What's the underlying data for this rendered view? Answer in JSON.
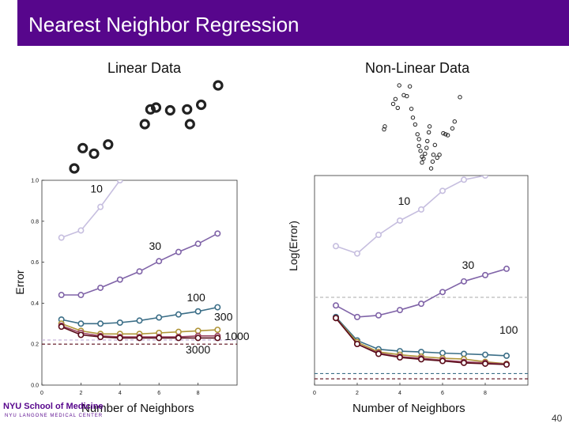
{
  "slide": {
    "title": "Nearest Neighbor Regression",
    "subtitle_left": "Linear Data",
    "subtitle_right": "Non-Linear Data",
    "page_number": "40",
    "logo_text": "NYU School of Medicine",
    "logo_subtext": "NYU LANGONE MEDICAL CENTER",
    "accent_color": "#57068c"
  },
  "chart_data": [
    {
      "type": "scatter",
      "name": "linear-data",
      "title": "Linear Data",
      "points": [
        [
          0.0,
          0.0
        ],
        [
          0.6,
          2.2
        ],
        [
          1.4,
          1.6
        ],
        [
          2.4,
          2.6
        ],
        [
          5.0,
          4.8
        ],
        [
          5.4,
          6.4
        ],
        [
          5.8,
          6.6
        ],
        [
          6.8,
          6.3
        ],
        [
          8.0,
          6.4
        ],
        [
          8.2,
          4.8
        ],
        [
          9.0,
          6.9
        ],
        [
          10.2,
          9.0
        ]
      ]
    },
    {
      "type": "scatter",
      "name": "nonlinear-data",
      "title": "Non-Linear Data",
      "points": [
        [
          0.0,
          4.2
        ],
        [
          0.1,
          4.5
        ],
        [
          1.2,
          6.8
        ],
        [
          1.5,
          7.3
        ],
        [
          1.8,
          6.4
        ],
        [
          2.0,
          8.7
        ],
        [
          2.6,
          7.7
        ],
        [
          3.0,
          7.6
        ],
        [
          3.4,
          8.6
        ],
        [
          3.6,
          6.3
        ],
        [
          3.8,
          5.4
        ],
        [
          4.1,
          4.7
        ],
        [
          4.4,
          3.7
        ],
        [
          4.6,
          3.2
        ],
        [
          4.6,
          2.5
        ],
        [
          4.8,
          2.0
        ],
        [
          5.0,
          1.4
        ],
        [
          5.0,
          0.8
        ],
        [
          5.2,
          1.2
        ],
        [
          5.4,
          1.7
        ],
        [
          5.6,
          2.3
        ],
        [
          5.7,
          3.0
        ],
        [
          5.9,
          3.9
        ],
        [
          6.0,
          4.5
        ],
        [
          6.2,
          0.2
        ],
        [
          6.4,
          0.9
        ],
        [
          6.5,
          1.6
        ],
        [
          6.7,
          2.6
        ],
        [
          7.0,
          1.3
        ],
        [
          7.3,
          1.6
        ],
        [
          7.8,
          3.8
        ],
        [
          8.1,
          3.7
        ],
        [
          8.4,
          3.6
        ],
        [
          9.0,
          4.3
        ],
        [
          9.3,
          5.0
        ],
        [
          10.0,
          7.5
        ]
      ]
    },
    {
      "type": "line",
      "name": "linear-error",
      "ylabel": "Error",
      "xlabel": "Number of Neighbors",
      "xlim": [
        0,
        10
      ],
      "ylim": [
        0.0,
        1.0
      ],
      "x_ticks": [
        0,
        2,
        4,
        6,
        8
      ],
      "y_ticks": [
        0.0,
        0.2,
        0.4,
        0.6,
        0.8,
        1.0
      ],
      "x_tick_labels": [
        "0",
        "2",
        "4",
        "6",
        "8"
      ],
      "y_tick_labels": [
        "0.0",
        "0.2",
        "0.4",
        "0.6",
        "0.8",
        "1.0"
      ],
      "x": [
        1,
        2,
        3,
        4,
        5,
        6,
        7,
        8,
        9
      ],
      "series": [
        {
          "name": "10",
          "color": "#c6bedf",
          "values": [
            0.72,
            0.755,
            0.87,
            1.0,
            null,
            null,
            null,
            null,
            null
          ]
        },
        {
          "name": "30",
          "color": "#8064a8",
          "values": [
            0.44,
            0.44,
            0.475,
            0.515,
            0.555,
            0.605,
            0.65,
            0.69,
            0.74
          ]
        },
        {
          "name": "100",
          "color": "#3b6e87",
          "values": [
            0.32,
            0.3,
            0.3,
            0.305,
            0.315,
            0.33,
            0.345,
            0.36,
            0.38
          ]
        },
        {
          "name": "300",
          "color": "#b09538",
          "values": [
            0.3,
            0.265,
            0.25,
            0.25,
            0.25,
            0.255,
            0.26,
            0.265,
            0.27
          ]
        },
        {
          "name": "1000",
          "color": "#9c4462",
          "values": [
            0.29,
            0.255,
            0.24,
            0.235,
            0.235,
            0.235,
            0.235,
            0.24,
            0.24
          ]
        },
        {
          "name": "3000",
          "color": "#5a0d1a",
          "values": [
            0.285,
            0.245,
            0.235,
            0.23,
            0.23,
            0.23,
            0.23,
            0.23,
            0.23
          ]
        }
      ],
      "reference_lines": [
        {
          "color": "#c8b4d9",
          "y": 0.22
        },
        {
          "color": "#5a0d1a",
          "y": 0.2
        }
      ],
      "annotations": [
        {
          "text": "10",
          "x": 2.8,
          "y": 0.94
        },
        {
          "text": "30",
          "x": 5.8,
          "y": 0.66
        },
        {
          "text": "100",
          "x": 7.9,
          "y": 0.41
        },
        {
          "text": "300",
          "x": 9.3,
          "y": 0.315
        },
        {
          "text": "1000",
          "x": 10.0,
          "y": 0.22
        },
        {
          "text": "3000",
          "x": 8.0,
          "y": 0.155
        }
      ]
    },
    {
      "type": "line",
      "name": "nonlinear-error",
      "ylabel": "Log(Error)",
      "xlabel": "Number of Neighbors",
      "xlim": [
        0,
        10
      ],
      "ylim": [
        0,
        10
      ],
      "x_ticks": [
        0,
        2,
        4,
        6,
        8
      ],
      "x_tick_labels": [
        "0",
        "2",
        "4",
        "6",
        "8"
      ],
      "x": [
        1,
        2,
        3,
        4,
        5,
        6,
        7,
        8,
        9
      ],
      "series": [
        {
          "name": "10",
          "color": "#c6bedf",
          "values": [
            6.63,
            6.28,
            7.17,
            7.85,
            8.38,
            9.27,
            9.8,
            10.0,
            null
          ]
        },
        {
          "name": "30",
          "color": "#8064a8",
          "values": [
            3.8,
            3.25,
            3.33,
            3.58,
            3.88,
            4.44,
            4.95,
            5.25,
            5.55
          ]
        },
        {
          "name": "100",
          "color": "#3b6e87",
          "values": [
            3.25,
            2.13,
            1.71,
            1.62,
            1.58,
            1.53,
            1.49,
            1.45,
            1.4
          ]
        },
        {
          "name": "300",
          "color": "#b09538",
          "values": [
            3.2,
            2.05,
            1.58,
            1.45,
            1.36,
            1.28,
            1.24,
            1.11,
            1.02
          ]
        },
        {
          "name": "1000",
          "color": "#9c4462",
          "values": [
            3.2,
            1.96,
            1.53,
            1.36,
            1.28,
            1.19,
            1.11,
            1.06,
            1.0
          ]
        },
        {
          "name": "3000",
          "color": "#5a0d1a",
          "values": [
            3.2,
            1.96,
            1.49,
            1.32,
            1.23,
            1.15,
            1.06,
            1.02,
            0.98
          ]
        }
      ],
      "reference_lines": [
        {
          "color": "#bbbbbb",
          "y": 4.19
        },
        {
          "color": "#3b6e87",
          "y": 0.55
        },
        {
          "color": "#5a0d1a",
          "y": 0.3
        }
      ],
      "annotations": [
        {
          "text": "10",
          "x": 4.2,
          "y": 8.6
        },
        {
          "text": "30",
          "x": 7.2,
          "y": 5.55
        },
        {
          "text": "100",
          "x": 9.1,
          "y": 2.45
        }
      ]
    }
  ]
}
